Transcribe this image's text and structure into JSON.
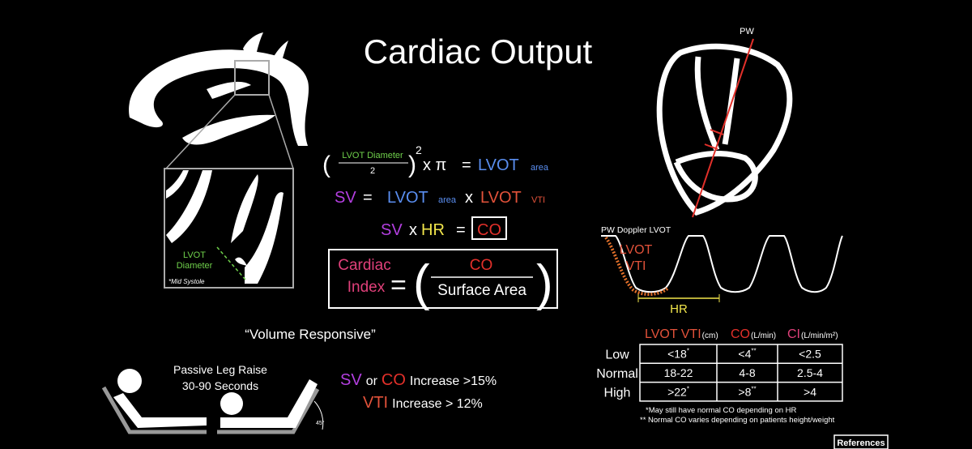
{
  "title": "Cardiac Output",
  "plax": {
    "label_lines": [
      "LVOT",
      "Diameter"
    ],
    "note": "*Mid Systole"
  },
  "formulas": {
    "area": {
      "numerator": "LVOT Diameter",
      "denominator": "2",
      "exponent": "2",
      "times_pi": "x π",
      "equals": "=",
      "result": "LVOT",
      "result_sub": "area"
    },
    "sv": {
      "lhs": "SV",
      "equals": "=",
      "term1": "LVOT",
      "term1_sub": "area",
      "times": "x",
      "term2": "LVOT",
      "term2_sub": "VTI"
    },
    "co": {
      "sv": "SV",
      "times": "x",
      "hr": "HR",
      "equals": "=",
      "co": "CO"
    },
    "ci": {
      "label_lines": [
        "Cardiac",
        "Index"
      ],
      "equals": "=",
      "numerator": "CO",
      "denominator": "Surface Area"
    }
  },
  "a4c": {
    "probe": "PW"
  },
  "doppler": {
    "title": "PW Doppler LVOT",
    "vti_lines": [
      "LVOT",
      "VTI"
    ],
    "hr": "HR"
  },
  "volume": {
    "title": "“Volume Responsive”",
    "plr_lines": [
      "Passive Leg Raise",
      "30-90 Seconds"
    ],
    "angle": "45°",
    "criteria": [
      {
        "sv": "SV",
        "or": "or",
        "co": "CO",
        "text": "Increase >15%"
      },
      {
        "vti": "VTI",
        "text": "Increase > 12%"
      }
    ]
  },
  "table": {
    "columns": [
      {
        "name": "LVOT VTI",
        "unit": "(cm)"
      },
      {
        "name": "CO",
        "unit": "(L/min)"
      },
      {
        "name": "CI",
        "unit": "(L/min/m²)"
      }
    ],
    "rows": [
      {
        "label": "Low",
        "cells": [
          {
            "text": "<18",
            "note": "*"
          },
          {
            "text": "<4",
            "note": "**"
          },
          {
            "text": "<2.5"
          }
        ]
      },
      {
        "label": "Normal",
        "cells": [
          {
            "text": "18-22"
          },
          {
            "text": "4-8"
          },
          {
            "text": "2.5-4"
          }
        ]
      },
      {
        "label": "High",
        "cells": [
          {
            "text": ">22",
            "note": "*"
          },
          {
            "text": ">8",
            "note": "**"
          },
          {
            "text": ">4"
          }
        ]
      }
    ],
    "footnotes": [
      "*May still have normal CO depending on HR",
      "** Normal CO varies depending on patients height/weight"
    ]
  },
  "references": "References"
}
